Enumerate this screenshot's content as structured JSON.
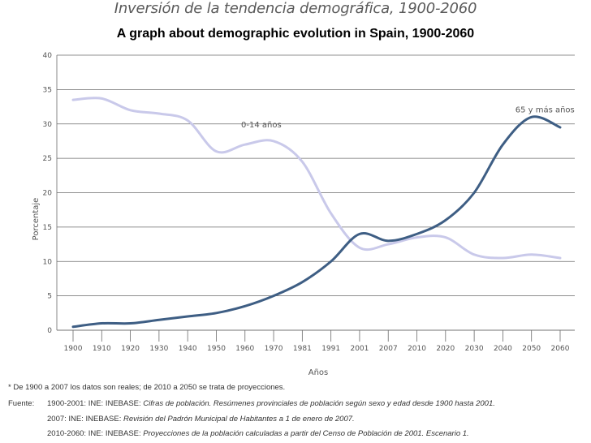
{
  "header": {
    "title": "Inversión de la tendencia demográfica, 1900-2060",
    "subtitle": "A graph about demographic evolution in Spain, 1900-2060"
  },
  "chart_data": {
    "type": "line",
    "title": "Inversión de la tendencia demográfica, 1900-2060",
    "xlabel": "Años",
    "ylabel": "Porcentaje",
    "ylim": [
      0,
      40
    ],
    "yticks": [
      0,
      5,
      10,
      15,
      20,
      25,
      30,
      35,
      40
    ],
    "grid": true,
    "categories": [
      "1900",
      "1910",
      "1920",
      "1930",
      "1940",
      "1950",
      "1960",
      "1970",
      "1981",
      "1991",
      "2001",
      "2007",
      "2010",
      "2020",
      "2030",
      "2040",
      "2050",
      "2060"
    ],
    "series": [
      {
        "name": "0-14 años",
        "color": "#c9c9ea",
        "values": [
          33.5,
          33.7,
          32,
          31.5,
          30.5,
          26,
          27,
          27.5,
          24.5,
          17,
          12,
          12.5,
          13.5,
          13.5,
          11,
          10.5,
          11,
          10.5
        ]
      },
      {
        "name": "65 y más años",
        "color": "#3e5e84",
        "values": [
          0.5,
          1,
          1,
          1.5,
          2,
          2.5,
          3.5,
          5,
          7,
          10,
          14,
          13,
          14,
          16,
          20,
          27,
          31,
          29.5
        ]
      }
    ]
  },
  "footnotes": {
    "note": "* De 1900 a 2007 los datos son reales; de 2010 a 2050 se trata de proyecciones.",
    "source_label": "Fuente:",
    "sources": [
      {
        "prefix": "1900-2001: INE: INEBASE: ",
        "italic": "Cifras de población. Resúmenes provinciales de población según sexo y edad desde 1900 hasta 2001."
      },
      {
        "prefix": "2007: INE: INEBASE: ",
        "italic": "Revisión del Padrón Municipal de Habitantes a 1 de enero de 2007."
      },
      {
        "prefix": "2010-2060: INE: INEBASE: ",
        "italic": "Proyecciones de la población calculadas a partir del Censo de Población de 2001. Escenario 1."
      }
    ]
  }
}
